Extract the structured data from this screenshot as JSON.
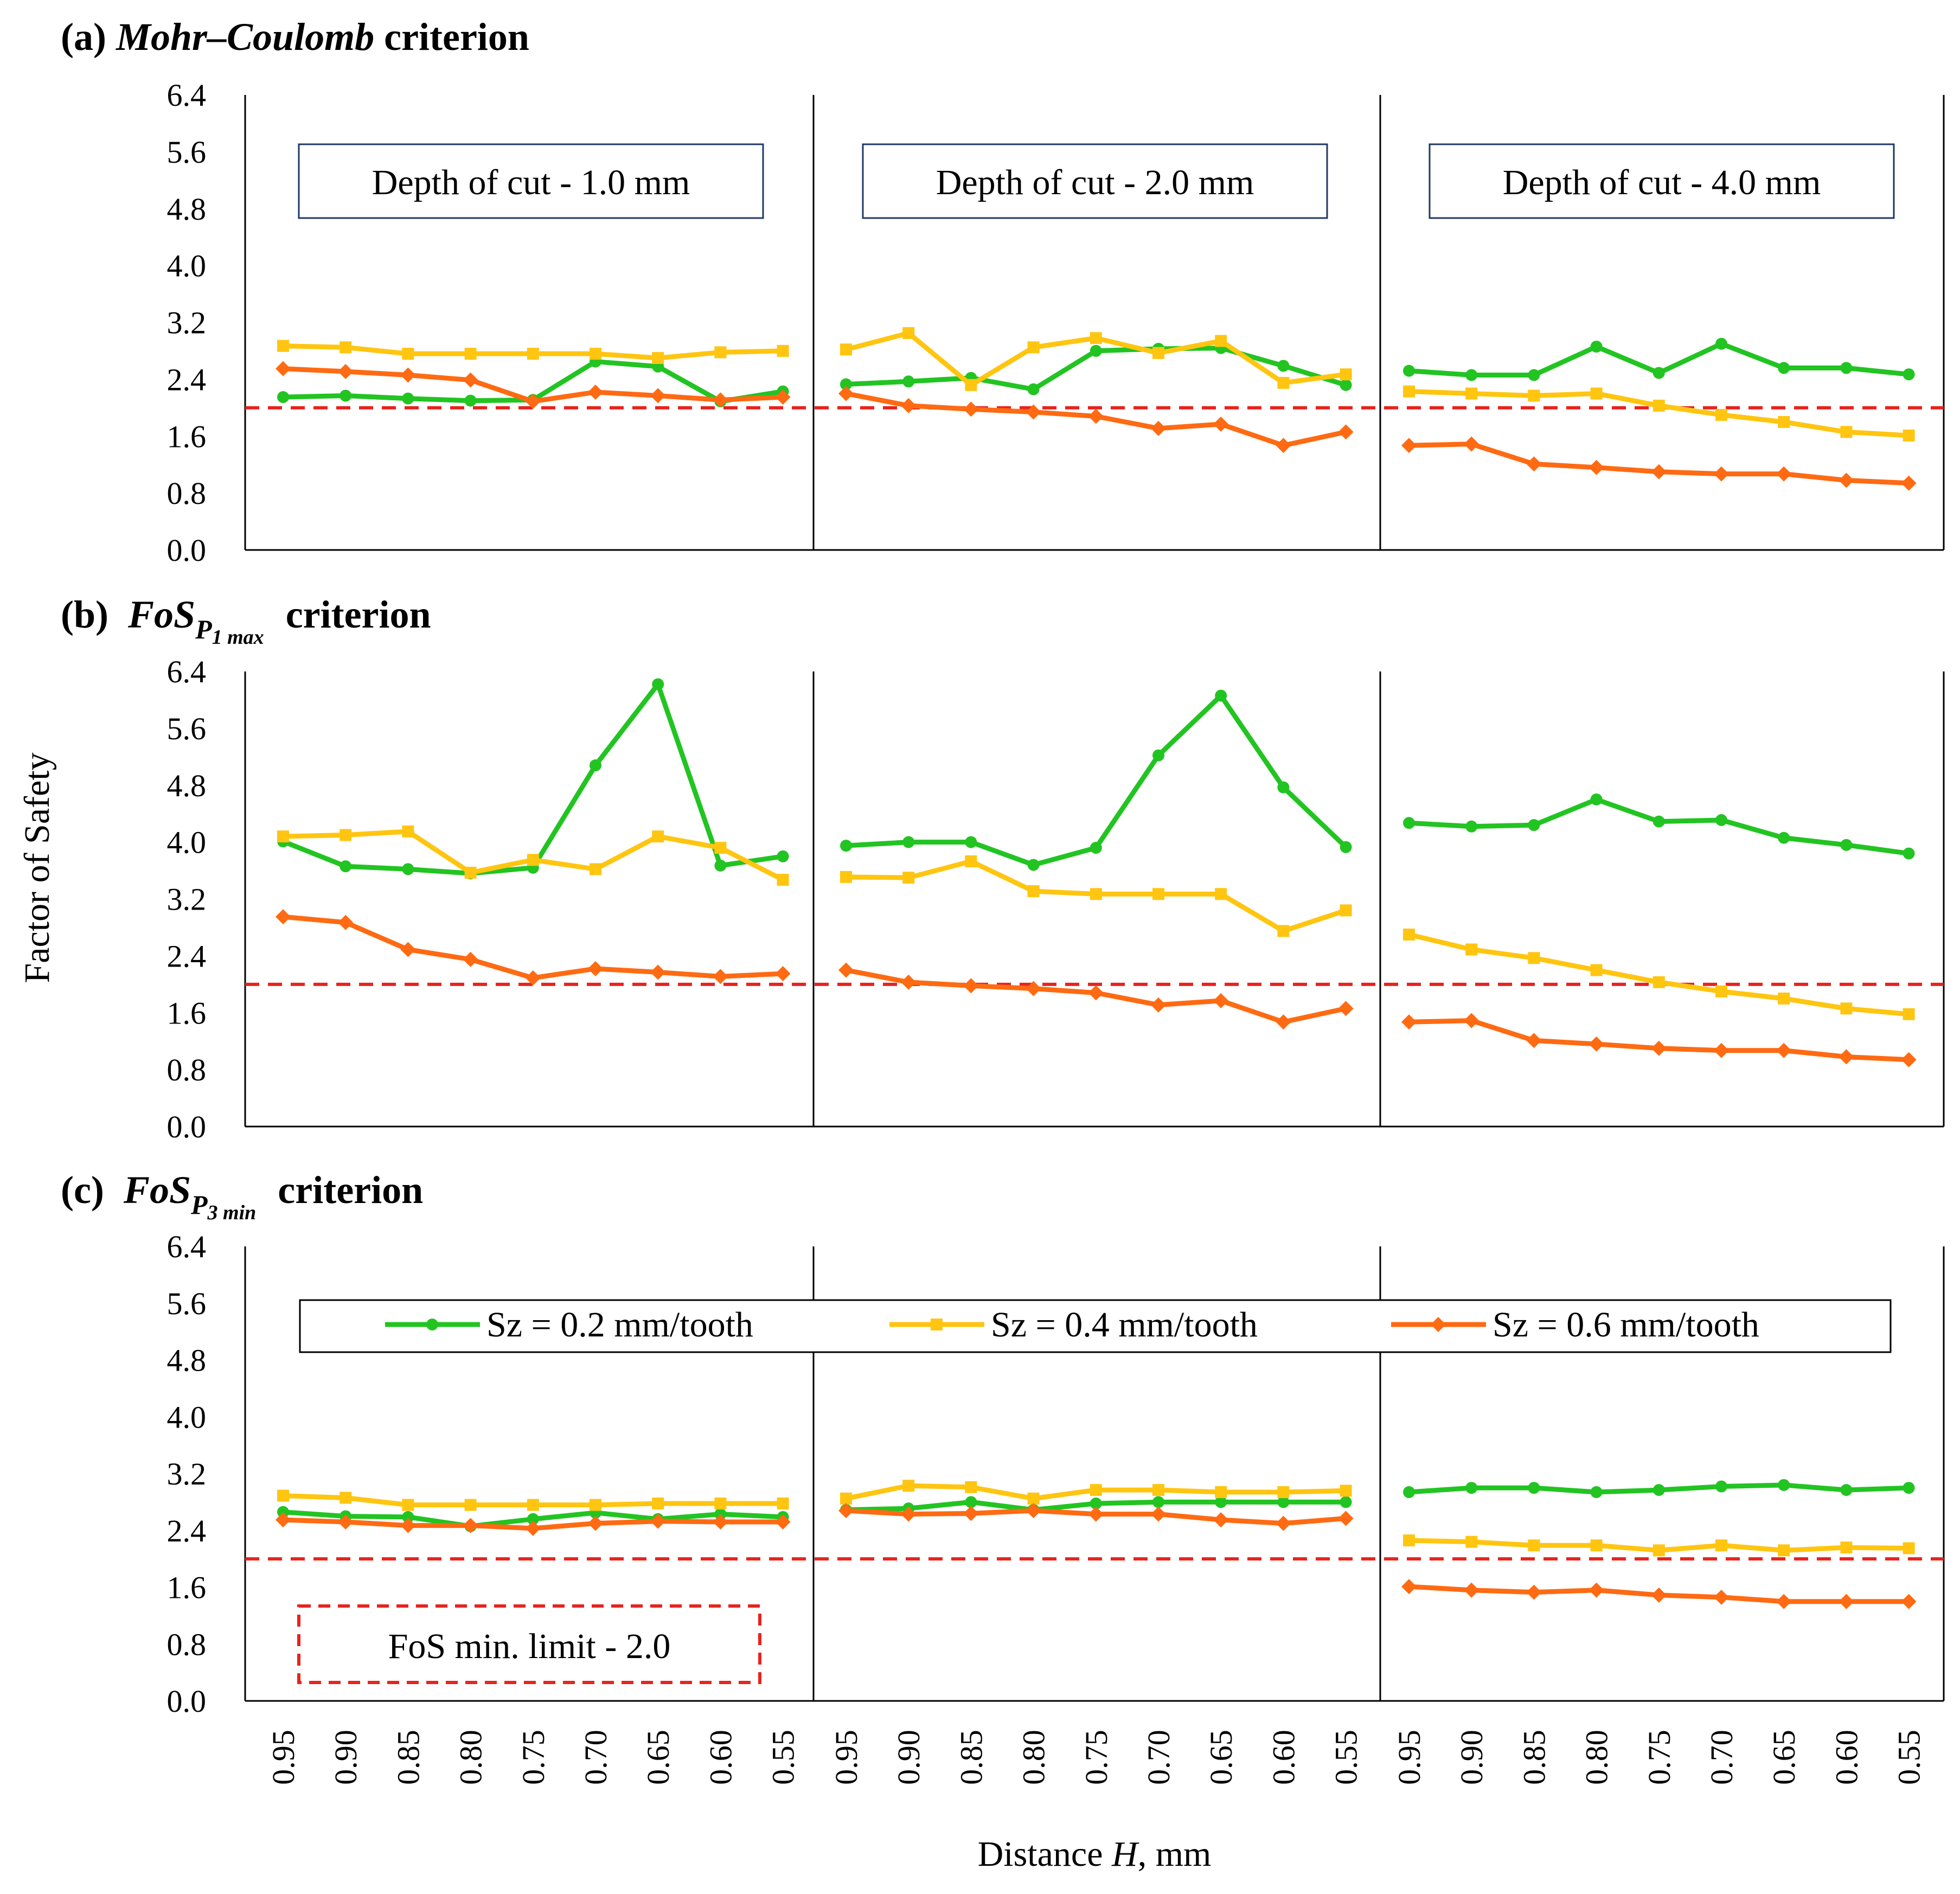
{
  "figure": {
    "y_axis_title": "Factor of Safety",
    "x_axis_title_prefix": "Distance ",
    "x_axis_title_var": "H",
    "x_axis_title_suffix": ", mm",
    "depth_labels": [
      "Depth of cut - 1.0 mm",
      "Depth of cut - 2.0 mm",
      "Depth of cut - 4.0 mm"
    ],
    "threshold_label": "FoS min. limit - 2.0",
    "legend": [
      "Sz = 0.2 mm/tooth",
      "Sz = 0.4 mm/tooth",
      "Sz = 0.6 mm/tooth"
    ],
    "colors": {
      "s02": "#22c422",
      "s04": "#ffc510",
      "s06": "#ff6a12",
      "threshold": "#e8231e"
    }
  },
  "chart_data": [
    {
      "type": "line",
      "title": "(a) Mohr–Coulomb criterion",
      "title_parts": {
        "prefix": "(a) ",
        "name": "Mohr–Coulomb",
        "suffix": " criterion"
      },
      "ylim": [
        0,
        6.4
      ],
      "yticks": [
        "0.0",
        "0.8",
        "1.6",
        "2.4",
        "3.2",
        "4.0",
        "4.8",
        "5.6",
        "6.4"
      ],
      "threshold": 2.0,
      "groups": [
        {
          "label": "Depth of cut - 1.0 mm",
          "x": [
            "0.95",
            "0.90",
            "0.85",
            "0.80",
            "0.75",
            "0.70",
            "0.65",
            "0.60",
            "0.55"
          ],
          "series": [
            {
              "name": "Sz = 0.2 mm/tooth",
              "values": [
                2.15,
                2.17,
                2.13,
                2.1,
                2.11,
                2.65,
                2.58,
                2.09,
                2.23
              ]
            },
            {
              "name": "Sz = 0.4 mm/tooth",
              "values": [
                2.87,
                2.85,
                2.76,
                2.76,
                2.76,
                2.76,
                2.7,
                2.78,
                2.8
              ]
            },
            {
              "name": "Sz = 0.6 mm/tooth",
              "values": [
                2.55,
                2.51,
                2.46,
                2.39,
                2.09,
                2.22,
                2.17,
                2.11,
                2.15
              ]
            }
          ]
        },
        {
          "label": "Depth of cut - 2.0 mm",
          "x": [
            "0.95",
            "0.90",
            "0.85",
            "0.80",
            "0.75",
            "0.70",
            "0.65",
            "0.60",
            "0.55"
          ],
          "series": [
            {
              "name": "Sz = 0.2 mm/tooth",
              "values": [
                2.33,
                2.37,
                2.42,
                2.26,
                2.8,
                2.83,
                2.84,
                2.59,
                2.32
              ]
            },
            {
              "name": "Sz = 0.4 mm/tooth",
              "values": [
                2.82,
                3.05,
                2.32,
                2.85,
                2.98,
                2.77,
                2.94,
                2.35,
                2.47
              ]
            },
            {
              "name": "Sz = 0.6 mm/tooth",
              "values": [
                2.2,
                2.03,
                1.98,
                1.94,
                1.88,
                1.71,
                1.77,
                1.47,
                1.66
              ]
            }
          ]
        },
        {
          "label": "Depth of cut - 4.0 mm",
          "x": [
            "0.95",
            "0.90",
            "0.85",
            "0.80",
            "0.75",
            "0.70",
            "0.65",
            "0.60",
            "0.55"
          ],
          "series": [
            {
              "name": "Sz = 0.2 mm/tooth",
              "values": [
                2.52,
                2.46,
                2.46,
                2.86,
                2.49,
                2.9,
                2.56,
                2.56,
                2.47
              ]
            },
            {
              "name": "Sz = 0.4 mm/tooth",
              "values": [
                2.23,
                2.2,
                2.17,
                2.2,
                2.03,
                1.9,
                1.8,
                1.66,
                1.61
              ]
            },
            {
              "name": "Sz = 0.6 mm/tooth",
              "values": [
                1.47,
                1.49,
                1.21,
                1.16,
                1.1,
                1.07,
                1.07,
                0.98,
                0.94
              ]
            }
          ]
        }
      ]
    },
    {
      "type": "line",
      "title": "(b) FoS P1 max criterion",
      "title_parts": {
        "prefix": "(b) ",
        "name": "FoS",
        "sub": "P",
        "subsub": "1 max",
        "suffix": " criterion"
      },
      "ylim": [
        0,
        6.4
      ],
      "yticks": [
        "0.0",
        "0.8",
        "1.6",
        "2.4",
        "3.2",
        "4.0",
        "4.8",
        "5.6",
        "6.4"
      ],
      "threshold": 2.0,
      "groups": [
        {
          "x": [
            "0.95",
            "0.90",
            "0.85",
            "0.80",
            "0.75",
            "0.70",
            "0.65",
            "0.60",
            "0.55"
          ],
          "series": [
            {
              "name": "Sz = 0.2 mm/tooth",
              "values": [
                4.01,
                3.66,
                3.62,
                3.56,
                3.64,
                5.08,
                6.22,
                3.67,
                3.8
              ]
            },
            {
              "name": "Sz = 0.4 mm/tooth",
              "values": [
                4.08,
                4.1,
                4.15,
                3.57,
                3.75,
                3.62,
                4.08,
                3.92,
                3.47
              ]
            },
            {
              "name": "Sz = 0.6 mm/tooth",
              "values": [
                2.95,
                2.87,
                2.49,
                2.35,
                2.09,
                2.22,
                2.17,
                2.11,
                2.15
              ]
            }
          ]
        },
        {
          "x": [
            "0.95",
            "0.90",
            "0.85",
            "0.80",
            "0.75",
            "0.70",
            "0.65",
            "0.60",
            "0.55"
          ],
          "series": [
            {
              "name": "Sz = 0.2 mm/tooth",
              "values": [
                3.95,
                4.0,
                4.0,
                3.68,
                3.92,
                5.22,
                6.06,
                4.77,
                3.93
              ]
            },
            {
              "name": "Sz = 0.4 mm/tooth",
              "values": [
                3.51,
                3.5,
                3.73,
                3.31,
                3.27,
                3.27,
                3.27,
                2.75,
                3.04
              ]
            },
            {
              "name": "Sz = 0.6 mm/tooth",
              "values": [
                2.2,
                2.03,
                1.98,
                1.94,
                1.88,
                1.71,
                1.77,
                1.47,
                1.66
              ]
            }
          ]
        },
        {
          "x": [
            "0.95",
            "0.90",
            "0.85",
            "0.80",
            "0.75",
            "0.70",
            "0.65",
            "0.60",
            "0.55"
          ],
          "series": [
            {
              "name": "Sz = 0.2 mm/tooth",
              "values": [
                4.27,
                4.22,
                4.24,
                4.6,
                4.29,
                4.31,
                4.06,
                3.96,
                3.84
              ]
            },
            {
              "name": "Sz = 0.4 mm/tooth",
              "values": [
                2.7,
                2.49,
                2.37,
                2.2,
                2.03,
                1.9,
                1.8,
                1.66,
                1.58
              ]
            },
            {
              "name": "Sz = 0.6 mm/tooth",
              "values": [
                1.47,
                1.49,
                1.21,
                1.16,
                1.1,
                1.07,
                1.07,
                0.98,
                0.94
              ]
            }
          ]
        }
      ]
    },
    {
      "type": "line",
      "title": "(c) FoS P3 min criterion",
      "title_parts": {
        "prefix": "(c) ",
        "name": "FoS",
        "sub": "P",
        "subsub": "3 min",
        "suffix": " criterion"
      },
      "ylim": [
        0,
        6.4
      ],
      "yticks": [
        "0.0",
        "0.8",
        "1.6",
        "2.4",
        "3.2",
        "4.0",
        "4.8",
        "5.6",
        "6.4"
      ],
      "threshold": 2.0,
      "groups": [
        {
          "x": [
            "0.95",
            "0.90",
            "0.85",
            "0.80",
            "0.75",
            "0.70",
            "0.65",
            "0.60",
            "0.55"
          ],
          "series": [
            {
              "name": "Sz = 0.2 mm/tooth",
              "values": [
                2.66,
                2.6,
                2.59,
                2.46,
                2.56,
                2.65,
                2.56,
                2.63,
                2.59
              ]
            },
            {
              "name": "Sz = 0.4 mm/tooth",
              "values": [
                2.89,
                2.86,
                2.76,
                2.76,
                2.76,
                2.76,
                2.78,
                2.78,
                2.78
              ]
            },
            {
              "name": "Sz = 0.6 mm/tooth",
              "values": [
                2.55,
                2.52,
                2.47,
                2.47,
                2.43,
                2.5,
                2.53,
                2.52,
                2.52
              ]
            }
          ]
        },
        {
          "x": [
            "0.95",
            "0.90",
            "0.85",
            "0.80",
            "0.75",
            "0.70",
            "0.65",
            "0.60",
            "0.55"
          ],
          "series": [
            {
              "name": "Sz = 0.2 mm/tooth",
              "values": [
                2.69,
                2.71,
                2.8,
                2.69,
                2.78,
                2.8,
                2.8,
                2.8,
                2.8
              ]
            },
            {
              "name": "Sz = 0.4 mm/tooth",
              "values": [
                2.85,
                3.03,
                3.01,
                2.85,
                2.97,
                2.97,
                2.94,
                2.94,
                2.96
              ]
            },
            {
              "name": "Sz = 0.6 mm/tooth",
              "values": [
                2.68,
                2.63,
                2.64,
                2.68,
                2.63,
                2.63,
                2.55,
                2.5,
                2.57
              ]
            }
          ]
        },
        {
          "x": [
            "0.95",
            "0.90",
            "0.85",
            "0.80",
            "0.75",
            "0.70",
            "0.65",
            "0.60",
            "0.55"
          ],
          "series": [
            {
              "name": "Sz = 0.2 mm/tooth",
              "values": [
                2.94,
                3.0,
                3.0,
                2.94,
                2.97,
                3.02,
                3.04,
                2.97,
                3.0
              ]
            },
            {
              "name": "Sz = 0.4 mm/tooth",
              "values": [
                2.26,
                2.24,
                2.19,
                2.19,
                2.12,
                2.19,
                2.12,
                2.16,
                2.15
              ]
            },
            {
              "name": "Sz = 0.6 mm/tooth",
              "values": [
                1.61,
                1.56,
                1.53,
                1.56,
                1.49,
                1.46,
                1.4,
                1.4,
                1.4
              ]
            }
          ]
        }
      ]
    }
  ]
}
